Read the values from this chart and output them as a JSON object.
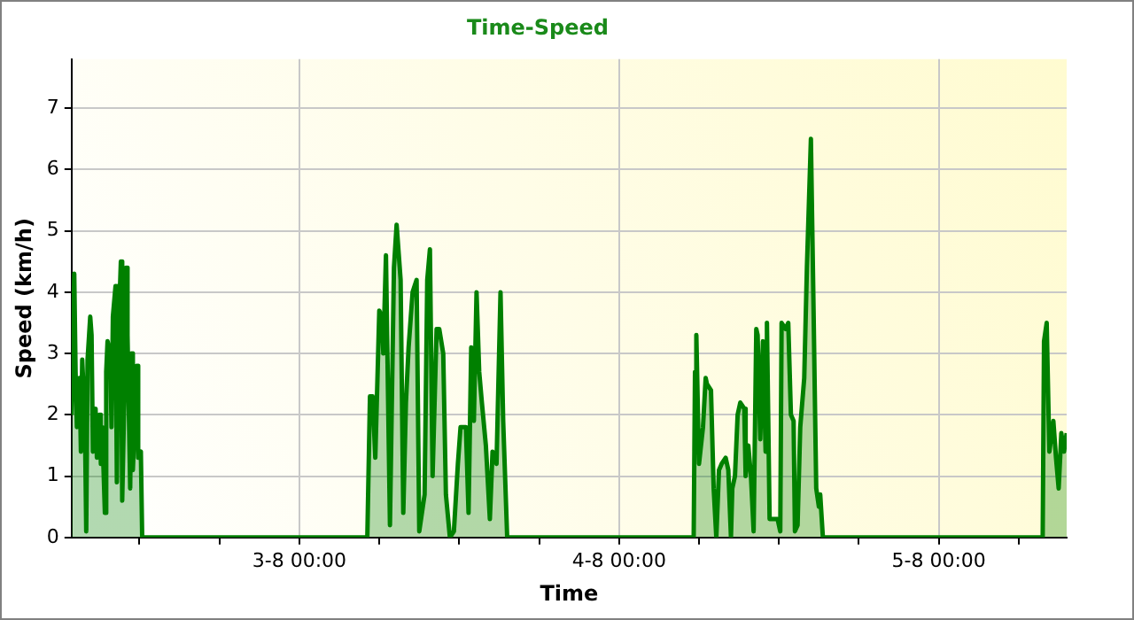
{
  "chart_data": {
    "type": "area",
    "title": "Time-Speed",
    "xlabel": "Time",
    "ylabel": "Speed (km/h)",
    "xlim": [
      "--08-02T06:54",
      "--08-05T09:36"
    ],
    "ylim": [
      0,
      7.8
    ],
    "xticks": [
      {
        "value": "--08-02T12:00",
        "label": null
      },
      {
        "value": "--08-02T18:00",
        "label": null
      },
      {
        "value": "--08-03T00:00",
        "label": "3-8 00:00"
      },
      {
        "value": "--08-03T06:00",
        "label": null
      },
      {
        "value": "--08-03T12:00",
        "label": null
      },
      {
        "value": "--08-03T18:00",
        "label": null
      },
      {
        "value": "--08-04T00:00",
        "label": "4-8 00:00"
      },
      {
        "value": "--08-04T06:00",
        "label": null
      },
      {
        "value": "--08-04T12:00",
        "label": null
      },
      {
        "value": "--08-04T18:00",
        "label": null
      },
      {
        "value": "--08-05T00:00",
        "label": "5-8 00:00"
      },
      {
        "value": "--08-05T06:00",
        "label": null
      }
    ],
    "yticks": [
      0,
      1,
      2,
      3,
      4,
      5,
      6,
      7
    ],
    "grid": true,
    "legend": false,
    "series": [
      {
        "color": "#008000",
        "x": [
          "--08-02T06:54",
          "--08-02T07:06",
          "--08-02T07:12",
          "--08-02T07:18",
          "--08-02T07:30",
          "--08-02T07:36",
          "--08-02T07:42",
          "--08-02T07:54",
          "--08-02T08:00",
          "--08-02T08:06",
          "--08-02T08:18",
          "--08-02T08:24",
          "--08-02T08:30",
          "--08-02T08:42",
          "--08-02T08:48",
          "--08-02T09:00",
          "--08-02T09:06",
          "--08-02T09:12",
          "--08-02T09:24",
          "--08-02T09:30",
          "--08-02T09:36",
          "--08-02T09:48",
          "--08-02T09:54",
          "--08-02T10:00",
          "--08-02T10:12",
          "--08-02T10:18",
          "--08-02T10:24",
          "--08-02T10:36",
          "--08-02T10:42",
          "--08-02T10:54",
          "--08-02T11:00",
          "--08-02T11:06",
          "--08-02T11:18",
          "--08-02T11:24",
          "--08-02T11:30",
          "--08-02T11:42",
          "--08-02T11:48",
          "--08-02T11:54",
          "--08-02T12:06",
          "--08-02T12:12",
          "--08-03T05:06",
          "--08-03T05:18",
          "--08-03T05:30",
          "--08-03T05:42",
          "--08-03T06:00",
          "--08-03T06:12",
          "--08-03T06:18",
          "--08-03T06:30",
          "--08-03T06:48",
          "--08-03T07:06",
          "--08-03T07:18",
          "--08-03T07:36",
          "--08-03T07:48",
          "--08-03T08:00",
          "--08-03T08:12",
          "--08-03T08:30",
          "--08-03T08:48",
          "--08-03T09:00",
          "--08-03T09:24",
          "--08-03T09:36",
          "--08-03T09:48",
          "--08-03T10:00",
          "--08-03T10:18",
          "--08-03T10:30",
          "--08-03T10:48",
          "--08-03T11:00",
          "--08-03T11:18",
          "--08-03T11:36",
          "--08-03T11:54",
          "--08-03T12:06",
          "--08-03T12:30",
          "--08-03T12:42",
          "--08-03T12:54",
          "--08-03T13:06",
          "--08-03T13:18",
          "--08-03T13:30",
          "--08-03T13:42",
          "--08-03T14:00",
          "--08-03T14:18",
          "--08-03T14:30",
          "--08-03T14:48",
          "--08-03T15:06",
          "--08-03T15:18",
          "--08-03T15:36",
          "--08-04T05:36",
          "--08-04T05:42",
          "--08-04T05:48",
          "--08-04T06:00",
          "--08-04T06:18",
          "--08-04T06:30",
          "--08-04T06:36",
          "--08-04T06:54",
          "--08-04T07:06",
          "--08-04T07:18",
          "--08-04T07:30",
          "--08-04T07:42",
          "--08-04T08:00",
          "--08-04T08:12",
          "--08-04T08:24",
          "--08-04T08:30",
          "--08-04T08:42",
          "--08-04T08:54",
          "--08-04T09:06",
          "--08-04T09:24",
          "--08-04T09:30",
          "--08-04T09:42",
          "--08-04T09:54",
          "--08-04T10:06",
          "--08-04T10:18",
          "--08-04T10:24",
          "--08-04T10:36",
          "--08-04T10:48",
          "--08-04T11:00",
          "--08-04T11:06",
          "--08-04T11:18",
          "--08-04T11:36",
          "--08-04T11:54",
          "--08-04T12:06",
          "--08-04T12:12",
          "--08-04T12:30",
          "--08-04T12:42",
          "--08-04T12:54",
          "--08-04T13:06",
          "--08-04T13:12",
          "--08-04T13:24",
          "--08-04T13:36",
          "--08-04T13:54",
          "--08-04T14:06",
          "--08-04T14:12",
          "--08-04T14:24",
          "--08-04T14:36",
          "--08-04T14:48",
          "--08-04T15:00",
          "--08-04T15:06",
          "--08-04T15:18",
          "--08-05T07:48",
          "--08-05T07:54",
          "--08-05T08:06",
          "--08-05T08:18",
          "--08-05T08:36",
          "--08-05T08:48",
          "--08-05T09:00",
          "--08-05T09:12",
          "--08-05T09:24",
          "--08-05T09:36"
        ],
        "values": [
          2.0,
          4.3,
          2.7,
          1.8,
          2.6,
          1.4,
          2.9,
          1.9,
          0.1,
          2.9,
          3.6,
          3.3,
          1.4,
          2.1,
          1.3,
          2.0,
          1.2,
          1.8,
          0.4,
          2.7,
          3.2,
          3.0,
          1.8,
          3.6,
          4.1,
          0.9,
          3.2,
          4.5,
          0.6,
          2.7,
          4.4,
          3.3,
          0.8,
          3.0,
          1.1,
          2.2,
          2.8,
          1.3,
          1.4,
          0,
          0,
          2.3,
          2.3,
          1.3,
          3.7,
          3.6,
          3.0,
          4.6,
          0.2,
          4.4,
          5.1,
          4.2,
          0.4,
          2.2,
          3.1,
          4.0,
          4.2,
          0.1,
          0.7,
          4.2,
          4.7,
          1.0,
          3.4,
          3.4,
          3.0,
          0.7,
          0,
          0.1,
          1.2,
          1.8,
          1.8,
          0.4,
          3.1,
          1.9,
          4.0,
          2.7,
          2.2,
          1.5,
          0.3,
          1.4,
          1.2,
          4.0,
          1.9,
          0,
          0,
          2.7,
          3.3,
          1.2,
          1.8,
          2.6,
          2.5,
          2.4,
          0.8,
          0,
          1.1,
          1.2,
          1.3,
          1.1,
          0,
          0.8,
          1.0,
          2.0,
          2.2,
          2.1,
          1.0,
          1.5,
          1.0,
          0.1,
          3.4,
          3.3,
          1.6,
          3.2,
          1.4,
          3.5,
          0.3,
          0.3,
          0.3,
          0.1,
          3.5,
          3.4,
          3.5,
          2.0,
          1.9,
          0.1,
          0.2,
          1.8,
          2.6,
          4.4,
          5.1,
          6.5,
          3.7,
          0.8,
          0.5,
          0.7,
          0,
          0,
          3.2,
          3.5,
          1.4,
          1.9,
          1.3,
          0.8,
          1.7,
          1.4,
          1.7
        ]
      }
    ]
  }
}
